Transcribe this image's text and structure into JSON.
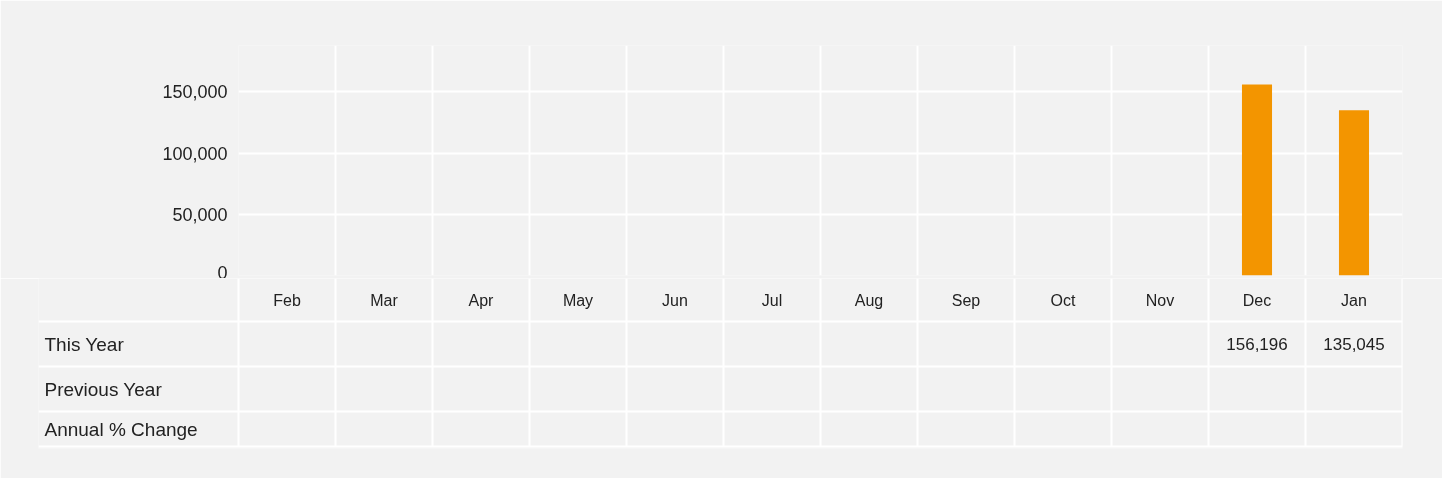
{
  "chart_data": {
    "type": "bar",
    "categories": [
      "Feb",
      "Mar",
      "Apr",
      "May",
      "Jun",
      "Jul",
      "Aug",
      "Sep",
      "Oct",
      "Nov",
      "Dec",
      "Jan"
    ],
    "series": [
      {
        "name": "This Year",
        "color": "#f39500",
        "values": [
          null,
          null,
          null,
          null,
          null,
          null,
          null,
          null,
          null,
          null,
          156196,
          135045
        ],
        "value_labels": [
          null,
          null,
          null,
          null,
          null,
          null,
          null,
          null,
          null,
          null,
          "156,196",
          "135,045"
        ]
      },
      {
        "name": "Previous Year",
        "values": [
          null,
          null,
          null,
          null,
          null,
          null,
          null,
          null,
          null,
          null,
          null,
          null
        ]
      }
    ],
    "annotations": [
      "Annual % Change"
    ],
    "ylim": [
      0,
      188000
    ],
    "yticks": [
      0,
      {
        "value": 50000,
        "label": "50,000"
      },
      {
        "value": 100000,
        "label": "100,000"
      },
      {
        "value": 150000,
        "label": "150,000"
      }
    ],
    "grid": true
  }
}
